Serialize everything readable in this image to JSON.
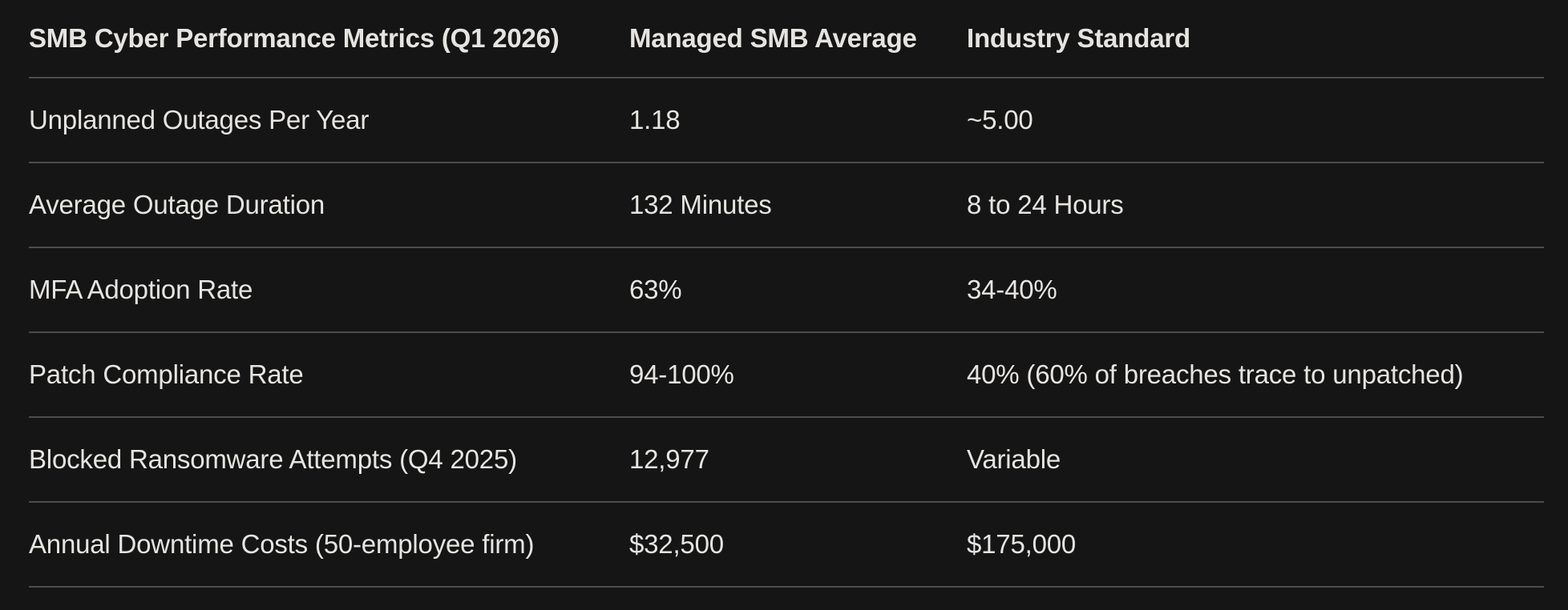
{
  "theme": {
    "background": "#151515",
    "text": "#e6e4e1",
    "divider": "#4c4c4a"
  },
  "chart_data": {
    "type": "table",
    "title": "SMB Cyber Performance Metrics (Q1 2026)",
    "columns": [
      "SMB Cyber Performance Metrics (Q1 2026)",
      "Managed SMB Average",
      "Industry Standard"
    ],
    "rows": [
      [
        "Unplanned Outages Per Year",
        "1.18",
        "~5.00"
      ],
      [
        "Average Outage Duration",
        "132 Minutes",
        "8 to 24 Hours"
      ],
      [
        "MFA Adoption Rate",
        "63%",
        "34-40%"
      ],
      [
        "Patch Compliance Rate",
        "94-100%",
        "40% (60% of breaches trace to unpatched)"
      ],
      [
        "Blocked Ransomware Attempts (Q4 2025)",
        "12,977",
        "Variable"
      ],
      [
        "Annual Downtime Costs (50-employee firm)",
        "$32,500",
        "$175,000"
      ]
    ]
  }
}
